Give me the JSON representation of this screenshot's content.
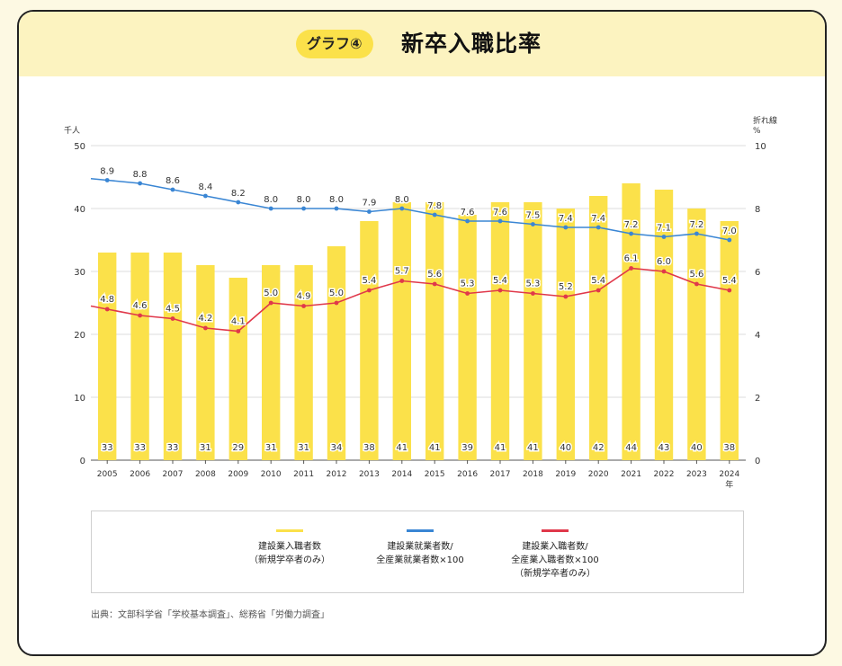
{
  "header": {
    "badge": "グラフ④",
    "title": "新卒入職比率"
  },
  "colors": {
    "bar": "#fbe14a",
    "blue_line": "#3a86d4",
    "red_line": "#e0384a",
    "header_bg": "#fcf3c0"
  },
  "chart_data": {
    "type": "bar",
    "left_axis_unit": "千人",
    "right_axis_unit": [
      "折れ線",
      "%"
    ],
    "x_unit": "年",
    "categories": [
      "2005",
      "2006",
      "2007",
      "2008",
      "2009",
      "2010",
      "2011",
      "2012",
      "2013",
      "2014",
      "2015",
      "2016",
      "2017",
      "2018",
      "2019",
      "2020",
      "2021",
      "2022",
      "2023",
      "2024"
    ],
    "ylim_left": [
      0,
      50
    ],
    "yticks_left": [
      0,
      10,
      20,
      30,
      40,
      50
    ],
    "ylim_right": [
      0,
      10
    ],
    "yticks_right": [
      0,
      2,
      4,
      6,
      8,
      10
    ],
    "grid": true,
    "series": [
      {
        "name": "建設業入職者数（新規学卒者のみ）",
        "type": "bar",
        "axis": "left",
        "values": [
          33,
          33,
          33,
          31,
          29,
          31,
          31,
          34,
          38,
          41,
          41,
          39,
          41,
          41,
          40,
          42,
          44,
          43,
          40,
          38
        ]
      },
      {
        "name": "建設業就業者数/全産業就業者数×100",
        "type": "line",
        "axis": "right",
        "values": [
          8.9,
          8.8,
          8.6,
          8.4,
          8.2,
          8.0,
          8.0,
          8.0,
          7.9,
          8.0,
          7.8,
          7.6,
          7.6,
          7.5,
          7.4,
          7.4,
          7.2,
          7.1,
          7.2,
          7.0
        ]
      },
      {
        "name": "建設業入職者数/全産業入職者数×100（新規学卒者のみ）",
        "type": "line",
        "axis": "right",
        "values": [
          4.8,
          4.6,
          4.5,
          4.2,
          4.1,
          5.0,
          4.9,
          5.0,
          5.4,
          5.7,
          5.6,
          5.3,
          5.4,
          5.3,
          5.2,
          5.4,
          6.1,
          6.0,
          5.6,
          5.4
        ]
      }
    ]
  },
  "legend": {
    "items": [
      {
        "lines": [
          "建設業入職者数",
          "（新規学卒者のみ）"
        ]
      },
      {
        "lines": [
          "建設業就業者数/",
          "全産業就業者数×100"
        ]
      },
      {
        "lines": [
          "建設業入職者数/",
          "全産業入職者数×100",
          "（新規学卒者のみ）"
        ]
      }
    ]
  },
  "source": "出典：文部科学省「学校基本調査」、総務省「労働力調査」"
}
